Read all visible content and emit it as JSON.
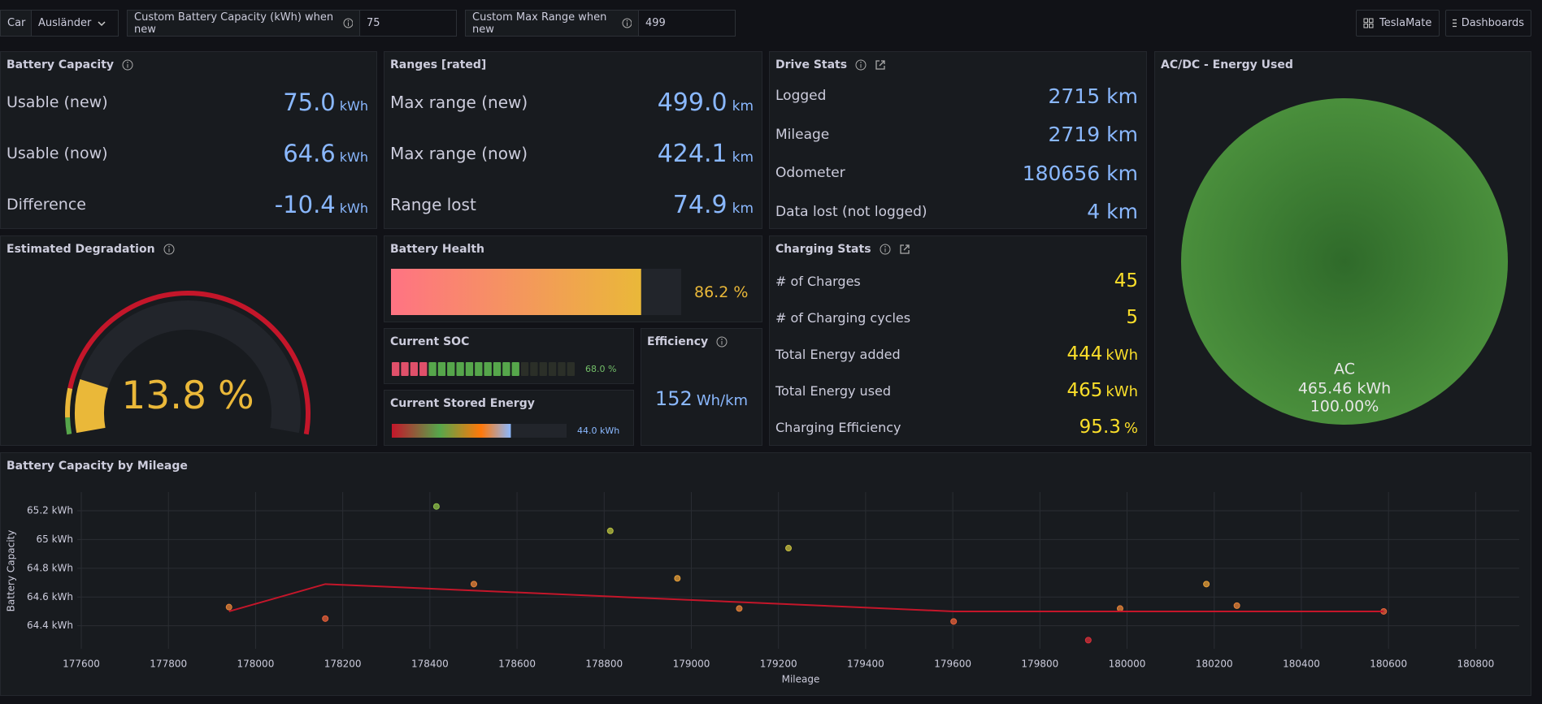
{
  "header": {
    "car_label": "Car",
    "car": "Ausländer",
    "capacity_label": "Custom Battery Capacity (kWh) when new",
    "capacity": "75",
    "range_label": "Custom Max Range when new",
    "range": "499",
    "buttons": [
      "TeslaMate",
      "Dashboards"
    ]
  },
  "battery_capacity": {
    "title": "Battery Capacity",
    "rows": [
      {
        "label": "Usable (new)",
        "value": "75.0",
        "unit": "kWh"
      },
      {
        "label": "Usable (now)",
        "value": "64.6",
        "unit": "kWh"
      },
      {
        "label": "Difference",
        "value": "-10.4",
        "unit": "kWh"
      }
    ]
  },
  "ranges": {
    "title": "Ranges [rated]",
    "rows": [
      {
        "label": "Max range (new)",
        "value": "499.0",
        "unit": "km"
      },
      {
        "label": "Max range (now)",
        "value": "424.1",
        "unit": "km"
      },
      {
        "label": "Range lost",
        "value": "74.9",
        "unit": "km"
      }
    ]
  },
  "drive_stats": {
    "title": "Drive Stats",
    "rows": [
      {
        "label": "Logged",
        "value": "2715",
        "unit": "km"
      },
      {
        "label": "Mileage",
        "value": "2719",
        "unit": "km"
      },
      {
        "label": "Odometer",
        "value": "180656",
        "unit": "km"
      },
      {
        "label": "Data lost (not logged)",
        "value": "4",
        "unit": "km"
      }
    ]
  },
  "energy_used": {
    "title": "AC/DC - Energy Used",
    "slices": [
      {
        "label": "AC",
        "value": 465.46,
        "value_label": "465.46 kWh",
        "percent": 100,
        "percent_label": "100.00%"
      }
    ]
  },
  "degradation": {
    "title": "Estimated Degradation",
    "value": 13.8,
    "unit": "%",
    "min": 0,
    "max": 100
  },
  "battery_health": {
    "title": "Battery Health",
    "value": 86.2,
    "unit": "%",
    "max": 100
  },
  "current_soc": {
    "title": "Current SOC",
    "value": 68,
    "label": "68.0 %",
    "max": 100
  },
  "stored_energy": {
    "title": "Current Stored Energy",
    "value": 44,
    "label": "44.0 kWh",
    "max": 64.6
  },
  "efficiency": {
    "title": "Efficiency",
    "value": "152",
    "unit": "Wh/km"
  },
  "charging_stats": {
    "title": "Charging Stats",
    "rows": [
      {
        "label": "# of Charges",
        "value": "45"
      },
      {
        "label": "# of Charging cycles",
        "value": "5"
      },
      {
        "label": "Total Energy added",
        "value": "444",
        "unit": "kWh"
      },
      {
        "label": "Total Energy used",
        "value": "465",
        "unit": "kWh"
      },
      {
        "label": "Charging Efficiency",
        "value": "95.3",
        "unit": "%"
      }
    ]
  },
  "chart_data": {
    "type": "scatter",
    "title": "Battery Capacity by Mileage",
    "x_label": "Mileage",
    "y_label": "Battery Capacity",
    "xlim": [
      177600,
      180900
    ],
    "ylim": [
      64.24,
      65.33
    ],
    "xticks": [
      177600,
      177800,
      178000,
      178200,
      178400,
      178600,
      178800,
      179000,
      179200,
      179400,
      179600,
      179800,
      180000,
      180200,
      180400,
      180600,
      180800
    ],
    "yticks": [
      {
        "value": 64.4,
        "label": "64.4 kWh"
      },
      {
        "value": 64.6,
        "label": "64.6 kWh"
      },
      {
        "value": 64.8,
        "label": "64.8 kWh"
      },
      {
        "value": 65,
        "label": "65 kWh"
      },
      {
        "value": 65.2,
        "label": "65.2 kWh"
      }
    ],
    "grid": true,
    "series": [
      {
        "type": "scatter",
        "x": [
          177939,
          178160,
          178415,
          178501,
          178814,
          178968,
          179110,
          179223,
          179602,
          179911,
          179984,
          180182,
          180252,
          180589
        ],
        "values": [
          64.53,
          64.45,
          65.23,
          64.69,
          65.06,
          64.73,
          64.52,
          64.94,
          64.43,
          64.3,
          64.52,
          64.69,
          64.54,
          64.5
        ],
        "colors": [
          "#e8843a",
          "#e8603a",
          "#8fc24a",
          "#e8843a",
          "#b8c040",
          "#e8a03a",
          "#e8843a",
          "#c8c040",
          "#e8603a",
          "#d8303a",
          "#e8843a",
          "#e8a03a",
          "#e8843a",
          "#e8603a"
        ]
      },
      {
        "type": "line",
        "x": [
          177939,
          178160,
          179602,
          180589
        ],
        "values": [
          64.5,
          64.69,
          64.5,
          64.5
        ],
        "color": "#c4162a"
      }
    ]
  }
}
